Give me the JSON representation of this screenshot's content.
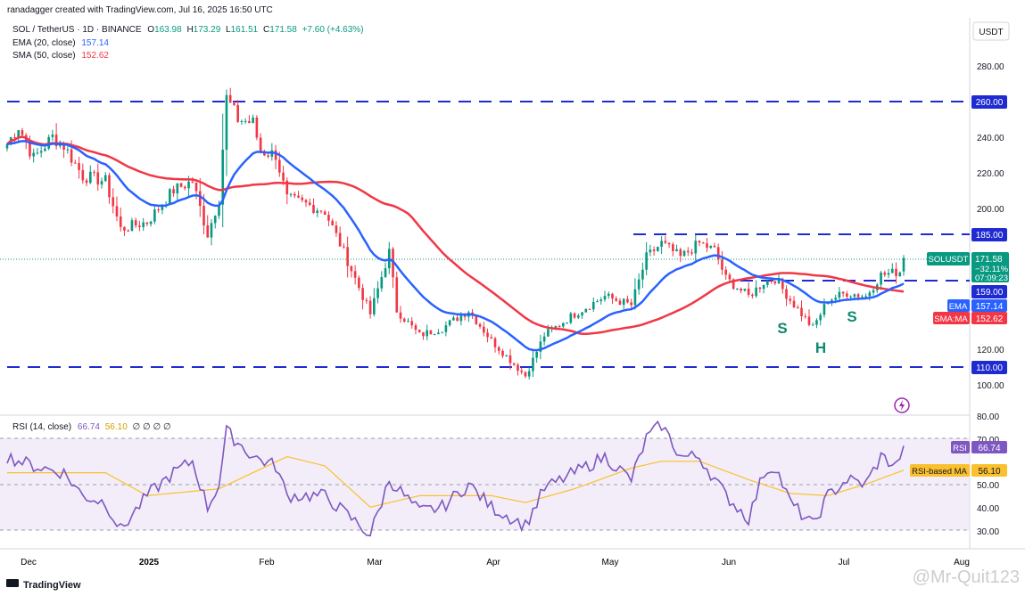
{
  "header": {
    "attribution": "ranadagger created with TradingView.com, Jul 16, 2025 16:50 UTC",
    "symbol_line": "SOL / TetherUS · 1D · BINANCE",
    "ohlc": {
      "o_label": "O",
      "o": "163.98",
      "h_label": "H",
      "h": "173.29",
      "l_label": "L",
      "l": "161.51",
      "c_label": "C",
      "c": "171.58",
      "change": "+7.60 (+4.63%)"
    },
    "ema_label": "EMA (20, close)",
    "ema_value": "157.14",
    "sma_label": "SMA (50, close)",
    "sma_value": "152.62"
  },
  "price_axis": {
    "currency": "USDT",
    "ticks": [
      "280.00",
      "240.00",
      "220.00",
      "200.00",
      "120.00",
      "100.00"
    ],
    "badges": {
      "r260": "260.00",
      "r185": "185.00",
      "r159": "159.00",
      "r110": "110.00",
      "symbol": "SOLUSDT",
      "last": "171.58",
      "diff": "−32.11%",
      "countdown": "07:09:23",
      "ema_tag": "EMA",
      "ema_val": "157.14",
      "sma_tag": "SMA:MA",
      "sma_val": "152.62"
    }
  },
  "pattern_labels": {
    "left_shoulder": "S",
    "head": "H",
    "right_shoulder": "S"
  },
  "rsi": {
    "label": "RSI (14, close)",
    "value": "66.74",
    "ma_value": "56.10",
    "extra": "∅ ∅ ∅ ∅",
    "ticks": [
      "80.00",
      "70.00",
      "50.00",
      "40.00",
      "30.00"
    ],
    "badge_rsi_tag": "RSI",
    "badge_rsi": "66.74",
    "badge_ma_tag": "RSI-based MA",
    "badge_ma": "56.10"
  },
  "time_axis": {
    "labels": [
      "Dec",
      "2025",
      "Feb",
      "Mar",
      "Apr",
      "May",
      "Jun",
      "Jul",
      "Aug"
    ]
  },
  "footer": {
    "brand": "TradingView",
    "watermark": "@Mr-Quit123"
  },
  "colors": {
    "up": "#089981",
    "down": "#f23645",
    "ema": "#2962ff",
    "sma": "#f23645",
    "rsi": "#7e57c2",
    "rsi_ma": "#fbc02d",
    "level": "#1f2bd1"
  },
  "chart_data": [
    {
      "type": "candlestick",
      "title": "SOL / TetherUS · 1D · BINANCE",
      "x_range": [
        "2024-11-21",
        "2025-07-16"
      ],
      "y_range": [
        90,
        305
      ],
      "horizontal_levels": [
        260,
        185,
        159,
        110
      ],
      "anchors": [
        [
          "2024-11-21",
          236
        ],
        [
          "2024-11-24",
          246
        ],
        [
          "2024-11-28",
          228
        ],
        [
          "2024-12-03",
          240
        ],
        [
          "2024-12-06",
          235
        ],
        [
          "2024-12-11",
          218
        ],
        [
          "2024-12-17",
          215
        ],
        [
          "2024-12-21",
          188
        ],
        [
          "2024-12-28",
          192
        ],
        [
          "2025-01-04",
          210
        ],
        [
          "2025-01-09",
          215
        ],
        [
          "2025-01-13",
          185
        ],
        [
          "2025-01-16",
          205
        ],
        [
          "2025-01-18",
          262
        ],
        [
          "2025-01-21",
          250
        ],
        [
          "2025-01-25",
          248
        ],
        [
          "2025-01-27",
          232
        ],
        [
          "2025-01-31",
          230
        ],
        [
          "2025-02-03",
          205
        ],
        [
          "2025-02-08",
          202
        ],
        [
          "2025-02-13",
          198
        ],
        [
          "2025-02-18",
          175
        ],
        [
          "2025-02-25",
          140
        ],
        [
          "2025-03-02",
          175
        ],
        [
          "2025-03-04",
          142
        ],
        [
          "2025-03-10",
          128
        ],
        [
          "2025-03-16",
          132
        ],
        [
          "2025-03-23",
          142
        ],
        [
          "2025-03-29",
          125
        ],
        [
          "2025-04-07",
          105
        ],
        [
          "2025-04-12",
          128
        ],
        [
          "2025-04-20",
          140
        ],
        [
          "2025-04-28",
          150
        ],
        [
          "2025-05-05",
          145
        ],
        [
          "2025-05-09",
          172
        ],
        [
          "2025-05-13",
          180
        ],
        [
          "2025-05-18",
          172
        ],
        [
          "2025-05-23",
          180
        ],
        [
          "2025-05-27",
          176
        ],
        [
          "2025-05-30",
          160
        ],
        [
          "2025-06-05",
          150
        ],
        [
          "2025-06-09",
          158
        ],
        [
          "2025-06-12",
          160
        ],
        [
          "2025-06-16",
          148
        ],
        [
          "2025-06-22",
          132
        ],
        [
          "2025-06-26",
          148
        ],
        [
          "2025-07-01",
          152
        ],
        [
          "2025-07-06",
          150
        ],
        [
          "2025-07-10",
          162
        ],
        [
          "2025-07-15",
          164
        ],
        [
          "2025-07-16",
          171.58
        ]
      ],
      "last_candle": {
        "date": "2025-07-16",
        "open": 163.98,
        "high": 173.29,
        "low": 161.51,
        "close": 171.58
      },
      "ema20_last": 157.14,
      "sma50_last": 152.62
    },
    {
      "type": "line",
      "title": "RSI (14, close)",
      "y_range": [
        25,
        80
      ],
      "bands": [
        30,
        50,
        70
      ],
      "anchors": [
        [
          "2024-11-21",
          62
        ],
        [
          "2024-11-28",
          58
        ],
        [
          "2024-12-06",
          55
        ],
        [
          "2024-12-11",
          45
        ],
        [
          "2024-12-17",
          42
        ],
        [
          "2024-12-21",
          30
        ],
        [
          "2024-12-28",
          45
        ],
        [
          "2025-01-04",
          55
        ],
        [
          "2025-01-09",
          60
        ],
        [
          "2025-01-13",
          40
        ],
        [
          "2025-01-16",
          50
        ],
        [
          "2025-01-18",
          73
        ],
        [
          "2025-01-25",
          62
        ],
        [
          "2025-01-31",
          58
        ],
        [
          "2025-02-03",
          45
        ],
        [
          "2025-02-13",
          45
        ],
        [
          "2025-02-25",
          28
        ],
        [
          "2025-03-02",
          52
        ],
        [
          "2025-03-10",
          38
        ],
        [
          "2025-03-16",
          40
        ],
        [
          "2025-03-23",
          50
        ],
        [
          "2025-03-29",
          40
        ],
        [
          "2025-04-07",
          32
        ],
        [
          "2025-04-12",
          48
        ],
        [
          "2025-04-20",
          55
        ],
        [
          "2025-04-28",
          62
        ],
        [
          "2025-05-05",
          52
        ],
        [
          "2025-05-09",
          70
        ],
        [
          "2025-05-13",
          76
        ],
        [
          "2025-05-18",
          62
        ],
        [
          "2025-05-23",
          62
        ],
        [
          "2025-05-30",
          45
        ],
        [
          "2025-06-05",
          35
        ],
        [
          "2025-06-09",
          55
        ],
        [
          "2025-06-12",
          58
        ],
        [
          "2025-06-16",
          42
        ],
        [
          "2025-06-22",
          32
        ],
        [
          "2025-06-26",
          45
        ],
        [
          "2025-07-01",
          52
        ],
        [
          "2025-07-06",
          50
        ],
        [
          "2025-07-10",
          62
        ],
        [
          "2025-07-14",
          58
        ],
        [
          "2025-07-16",
          66.74
        ]
      ],
      "ma_anchors": [
        [
          "2024-11-21",
          55
        ],
        [
          "2024-12-17",
          55
        ],
        [
          "2024-12-28",
          45
        ],
        [
          "2025-01-16",
          48
        ],
        [
          "2025-02-03",
          62
        ],
        [
          "2025-02-13",
          58
        ],
        [
          "2025-02-25",
          40
        ],
        [
          "2025-03-10",
          45
        ],
        [
          "2025-03-29",
          45
        ],
        [
          "2025-04-07",
          42
        ],
        [
          "2025-04-20",
          48
        ],
        [
          "2025-05-05",
          57
        ],
        [
          "2025-05-13",
          60
        ],
        [
          "2025-05-23",
          60
        ],
        [
          "2025-06-05",
          52
        ],
        [
          "2025-06-16",
          46
        ],
        [
          "2025-06-26",
          45
        ],
        [
          "2025-07-06",
          50
        ],
        [
          "2025-07-16",
          56.1
        ]
      ]
    }
  ]
}
